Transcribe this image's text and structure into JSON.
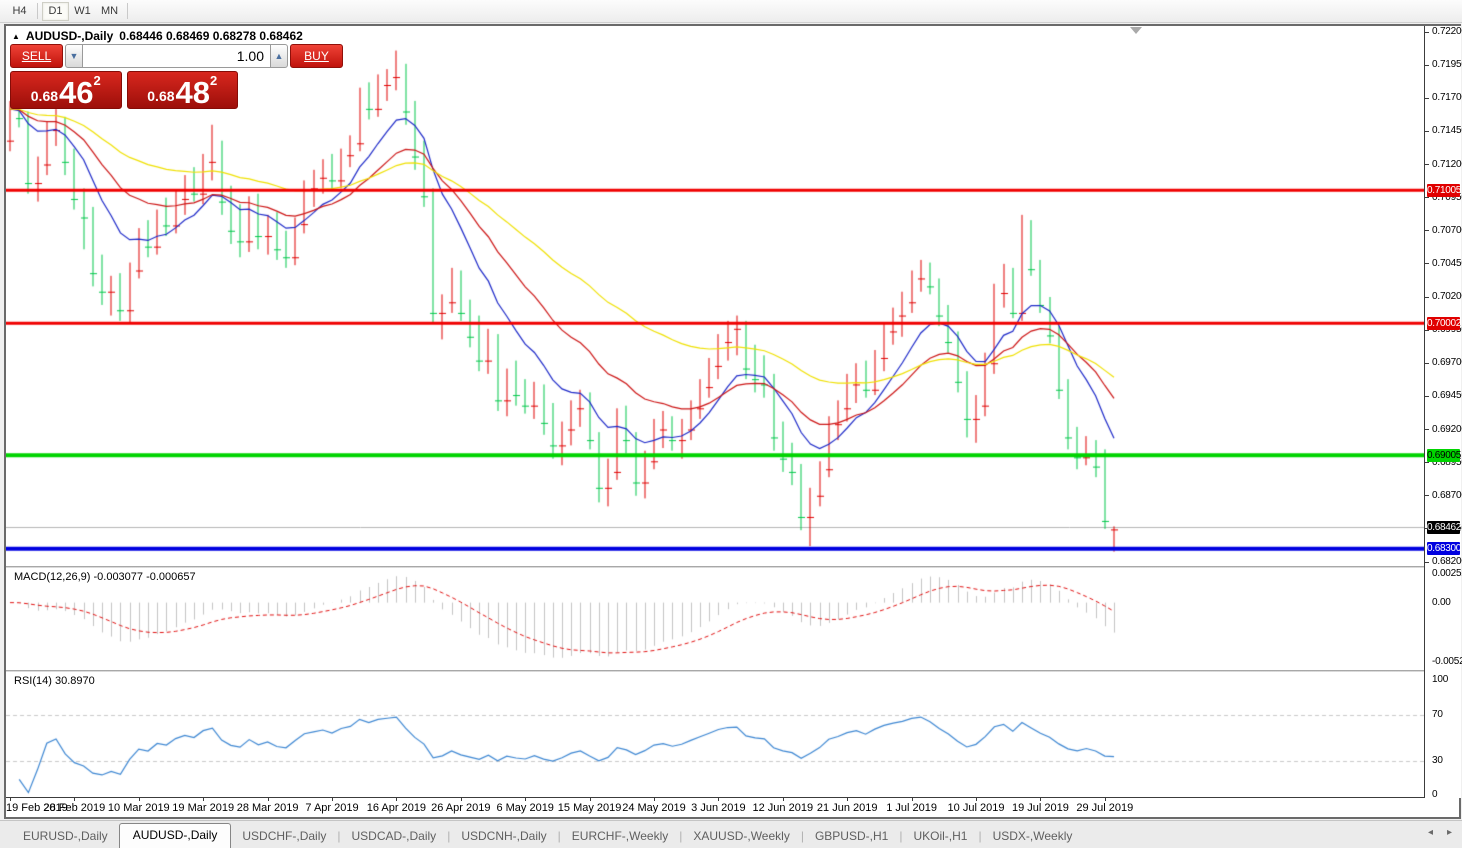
{
  "toolbar": {
    "timeframes": [
      "H4",
      "D1",
      "W1",
      "MN"
    ],
    "active": "D1"
  },
  "header": {
    "symbol": "AUDUSD-,Daily",
    "ohlc": "0.68446 0.68469 0.68278 0.68462"
  },
  "trade_panel": {
    "sell_label": "SELL",
    "buy_label": "BUY",
    "volume": "1.00",
    "bid": {
      "prefix": "0.68",
      "big": "46",
      "sup": "2"
    },
    "ask": {
      "prefix": "0.68",
      "big": "48",
      "sup": "2"
    }
  },
  "chart_data": {
    "type": "candlestick",
    "title": "AUDUSD Daily",
    "ylim": [
      0.682,
      0.722
    ],
    "y_step": 0.0025,
    "grid": false,
    "colors": {
      "up": "#e00000",
      "down": "#00c84b",
      "current_line": "#b4b4b4"
    },
    "moving_averages": [
      {
        "period": 10,
        "color": "#1c28c8"
      },
      {
        "period": 21,
        "color": "#cc1414"
      },
      {
        "period": 45,
        "color": "#efe000"
      }
    ],
    "hlines": [
      {
        "price": 0.71005,
        "color": "#f00000",
        "width": 3,
        "label": "0.71005",
        "label_bg": "#e00000",
        "label_fg": "#ffffff"
      },
      {
        "price": 0.70002,
        "color": "#f00000",
        "width": 3,
        "label": "0.70002",
        "label_bg": "#e00000",
        "label_fg": "#ffffff"
      },
      {
        "price": 0.69005,
        "color": "#00d400",
        "width": 4,
        "label": "0.69005",
        "label_bg": "#00d400",
        "label_fg": "#000000"
      },
      {
        "price": 0.683,
        "color": "#0000e0",
        "width": 4,
        "label": "0.68300",
        "label_bg": "#0000e0",
        "label_fg": "#ffffff"
      }
    ],
    "current_price": {
      "value": 0.68462,
      "label": "0.68462",
      "label_bg": "#000000",
      "label_fg": "#ffffff"
    },
    "x_tick_every": 7,
    "x_tick_labels": [
      "19 Feb 2019",
      "28 Feb 2019",
      "10 Mar 2019",
      "19 Mar 2019",
      "28 Mar 2019",
      "7 Apr 2019",
      "16 Apr 2019",
      "26 Apr 2019",
      "6 May 2019",
      "15 May 2019",
      "24 May 2019",
      "3 Jun 2019",
      "12 Jun 2019",
      "21 Jun 2019",
      "1 Jul 2019",
      "10 Jul 2019",
      "19 Jul 2019",
      "29 Jul 2019"
    ],
    "bars": [
      [
        0.7138,
        0.7168,
        0.713,
        0.7162
      ],
      [
        0.7162,
        0.717,
        0.7148,
        0.7155
      ],
      [
        0.7155,
        0.716,
        0.7098,
        0.7106
      ],
      [
        0.7106,
        0.7126,
        0.7092,
        0.712
      ],
      [
        0.712,
        0.7152,
        0.7112,
        0.7146
      ],
      [
        0.7146,
        0.7162,
        0.7134,
        0.7152
      ],
      [
        0.7152,
        0.7156,
        0.7112,
        0.7122
      ],
      [
        0.7122,
        0.7132,
        0.7086,
        0.7094
      ],
      [
        0.7094,
        0.7102,
        0.7056,
        0.708
      ],
      [
        0.708,
        0.7088,
        0.7028,
        0.7038
      ],
      [
        0.7038,
        0.7052,
        0.7014,
        0.7024
      ],
      [
        0.7024,
        0.7036,
        0.7006,
        0.703
      ],
      [
        0.703,
        0.7038,
        0.7002,
        0.701
      ],
      [
        0.701,
        0.7046,
        0.7,
        0.704
      ],
      [
        0.704,
        0.7072,
        0.7034,
        0.7066
      ],
      [
        0.7066,
        0.7078,
        0.705,
        0.7058
      ],
      [
        0.7058,
        0.7086,
        0.7052,
        0.708
      ],
      [
        0.708,
        0.7095,
        0.7066,
        0.7074
      ],
      [
        0.7074,
        0.71,
        0.7068,
        0.7094
      ],
      [
        0.7094,
        0.7112,
        0.7082,
        0.7105
      ],
      [
        0.7105,
        0.7118,
        0.7092,
        0.7098
      ],
      [
        0.7098,
        0.7128,
        0.709,
        0.7122
      ],
      [
        0.7122,
        0.715,
        0.7108,
        0.7132
      ],
      [
        0.7132,
        0.7138,
        0.7082,
        0.7092
      ],
      [
        0.7092,
        0.7104,
        0.706,
        0.707
      ],
      [
        0.707,
        0.709,
        0.705,
        0.7062
      ],
      [
        0.7062,
        0.7096,
        0.7054,
        0.7088
      ],
      [
        0.7088,
        0.7098,
        0.7056,
        0.7066
      ],
      [
        0.7066,
        0.7082,
        0.7052,
        0.7076
      ],
      [
        0.7076,
        0.7084,
        0.7048,
        0.7056
      ],
      [
        0.7056,
        0.707,
        0.7042,
        0.705
      ],
      [
        0.705,
        0.708,
        0.7044,
        0.7075
      ],
      [
        0.7075,
        0.7108,
        0.7068,
        0.7102
      ],
      [
        0.7102,
        0.7116,
        0.7088,
        0.711
      ],
      [
        0.711,
        0.7124,
        0.7098,
        0.7118
      ],
      [
        0.7118,
        0.7128,
        0.71,
        0.7108
      ],
      [
        0.7108,
        0.7132,
        0.7102,
        0.7127
      ],
      [
        0.7127,
        0.7142,
        0.7118,
        0.7136
      ],
      [
        0.7136,
        0.7178,
        0.713,
        0.7172
      ],
      [
        0.7172,
        0.7182,
        0.7154,
        0.7162
      ],
      [
        0.7162,
        0.7188,
        0.7156,
        0.718
      ],
      [
        0.718,
        0.7192,
        0.7168,
        0.7186
      ],
      [
        0.7186,
        0.7206,
        0.7176,
        0.7192
      ],
      [
        0.7192,
        0.7196,
        0.715,
        0.716
      ],
      [
        0.716,
        0.7168,
        0.7116,
        0.7126
      ],
      [
        0.7126,
        0.7138,
        0.7088,
        0.7096
      ],
      [
        0.7096,
        0.7102,
        0.7,
        0.7008
      ],
      [
        0.7008,
        0.7022,
        0.6988,
        0.7016
      ],
      [
        0.7016,
        0.7042,
        0.7008,
        0.7036
      ],
      [
        0.7036,
        0.704,
        0.7002,
        0.7008
      ],
      [
        0.7008,
        0.7018,
        0.6982,
        0.699
      ],
      [
        0.699,
        0.7006,
        0.6964,
        0.6972
      ],
      [
        0.6972,
        0.6996,
        0.6962,
        0.6988
      ],
      [
        0.6988,
        0.6992,
        0.6934,
        0.6942
      ],
      [
        0.6942,
        0.6966,
        0.693,
        0.696
      ],
      [
        0.696,
        0.6972,
        0.6938,
        0.6946
      ],
      [
        0.6946,
        0.6958,
        0.6932,
        0.6938
      ],
      [
        0.6938,
        0.6956,
        0.6928,
        0.695
      ],
      [
        0.695,
        0.6954,
        0.6916,
        0.6925
      ],
      [
        0.6925,
        0.694,
        0.6898,
        0.6908
      ],
      [
        0.6908,
        0.6926,
        0.6893,
        0.692
      ],
      [
        0.692,
        0.6942,
        0.6908,
        0.6936
      ],
      [
        0.6936,
        0.695,
        0.6922,
        0.6944
      ],
      [
        0.6944,
        0.6948,
        0.6905,
        0.6912
      ],
      [
        0.6912,
        0.6918,
        0.6865,
        0.6876
      ],
      [
        0.6876,
        0.6898,
        0.6862,
        0.6888
      ],
      [
        0.6888,
        0.6936,
        0.6882,
        0.6926
      ],
      [
        0.6926,
        0.6938,
        0.6902,
        0.6912
      ],
      [
        0.6912,
        0.6918,
        0.687,
        0.688
      ],
      [
        0.688,
        0.6904,
        0.6868,
        0.6896
      ],
      [
        0.6896,
        0.6928,
        0.689,
        0.692
      ],
      [
        0.692,
        0.6934,
        0.6906,
        0.6926
      ],
      [
        0.6926,
        0.693,
        0.6904,
        0.6912
      ],
      [
        0.6912,
        0.6928,
        0.6898,
        0.692
      ],
      [
        0.692,
        0.6942,
        0.6912,
        0.6936
      ],
      [
        0.6936,
        0.6958,
        0.6928,
        0.6952
      ],
      [
        0.6952,
        0.6974,
        0.6944,
        0.6968
      ],
      [
        0.6968,
        0.6992,
        0.6958,
        0.6986
      ],
      [
        0.6986,
        0.7002,
        0.6972,
        0.6996
      ],
      [
        0.6996,
        0.7006,
        0.6976,
        0.6998
      ],
      [
        0.6998,
        0.7002,
        0.6958,
        0.6966
      ],
      [
        0.6966,
        0.6984,
        0.6948,
        0.6958
      ],
      [
        0.6958,
        0.6976,
        0.6944,
        0.6954
      ],
      [
        0.6954,
        0.6962,
        0.6904,
        0.6914
      ],
      [
        0.6914,
        0.6926,
        0.6888,
        0.6898
      ],
      [
        0.6898,
        0.691,
        0.6878,
        0.6888
      ],
      [
        0.6888,
        0.6894,
        0.6844,
        0.6854
      ],
      [
        0.6854,
        0.6876,
        0.6832,
        0.687
      ],
      [
        0.687,
        0.6896,
        0.6862,
        0.689
      ],
      [
        0.689,
        0.693,
        0.6884,
        0.6924
      ],
      [
        0.6924,
        0.6942,
        0.6912,
        0.6936
      ],
      [
        0.6936,
        0.6962,
        0.6926,
        0.6954
      ],
      [
        0.6954,
        0.697,
        0.694,
        0.6964
      ],
      [
        0.6964,
        0.6972,
        0.6944,
        0.695
      ],
      [
        0.695,
        0.698,
        0.6946,
        0.6974
      ],
      [
        0.6974,
        0.7,
        0.6964,
        0.6994
      ],
      [
        0.6994,
        0.7012,
        0.6984,
        0.7006
      ],
      [
        0.7006,
        0.7024,
        0.699,
        0.7016
      ],
      [
        0.7016,
        0.704,
        0.7008,
        0.7034
      ],
      [
        0.7034,
        0.7048,
        0.7024,
        0.7042
      ],
      [
        0.7042,
        0.7046,
        0.7022,
        0.7028
      ],
      [
        0.7028,
        0.7034,
        0.6998,
        0.7006
      ],
      [
        0.7006,
        0.7014,
        0.6978,
        0.6986
      ],
      [
        0.6986,
        0.6994,
        0.6948,
        0.6956
      ],
      [
        0.6956,
        0.6964,
        0.6914,
        0.6928
      ],
      [
        0.6928,
        0.6946,
        0.691,
        0.6938
      ],
      [
        0.6938,
        0.6978,
        0.693,
        0.697
      ],
      [
        0.697,
        0.703,
        0.6962,
        0.7023
      ],
      [
        0.7023,
        0.7045,
        0.7012,
        0.7038
      ],
      [
        0.7038,
        0.7042,
        0.7004,
        0.7008
      ],
      [
        0.7008,
        0.7082,
        0.7002,
        0.7067
      ],
      [
        0.7067,
        0.7078,
        0.7036,
        0.7041
      ],
      [
        0.7041,
        0.7048,
        0.7008,
        0.7014
      ],
      [
        0.7014,
        0.702,
        0.6985,
        0.6991
      ],
      [
        0.6991,
        0.6998,
        0.6943,
        0.695
      ],
      [
        0.695,
        0.6958,
        0.6905,
        0.6914
      ],
      [
        0.6914,
        0.6922,
        0.689,
        0.6899
      ],
      [
        0.6899,
        0.6915,
        0.6893,
        0.691
      ],
      [
        0.691,
        0.6912,
        0.6884,
        0.6892
      ],
      [
        0.6892,
        0.6905,
        0.6845,
        0.6851
      ],
      [
        0.68446,
        0.68469,
        0.68278,
        0.68462
      ]
    ],
    "macd": {
      "label": "MACD(12,26,9)",
      "values_text": "-0.003077 -0.000657",
      "fast": 12,
      "slow": 26,
      "signal": 9,
      "ylim": [
        -0.005234,
        0.002522
      ],
      "axis_labels": [
        "0.002522",
        "0.00",
        "-0.005234"
      ],
      "hist_color": "#c3c3c3",
      "signal_color": "#e01010"
    },
    "rsi": {
      "label": "RSI(14)",
      "value_text": "30.8970",
      "period": 14,
      "levels": [
        70,
        30
      ],
      "axis_labels": [
        100,
        70,
        30,
        0
      ],
      "color": "#3c86d2",
      "level_color": "#c9c9c9"
    }
  },
  "tabs": {
    "items": [
      "EURUSD-,Daily",
      "AUDUSD-,Daily",
      "USDCHF-,Daily",
      "USDCAD-,Daily",
      "USDCNH-,Daily",
      "EURCHF-,Weekly",
      "XAUUSD-,Weekly",
      "GBPUSD-,H1",
      "UKOil-,H1",
      "USDX-,Weekly"
    ],
    "active_index": 1
  },
  "tab_scroll": {
    "left": "◂",
    "right": "▸"
  }
}
